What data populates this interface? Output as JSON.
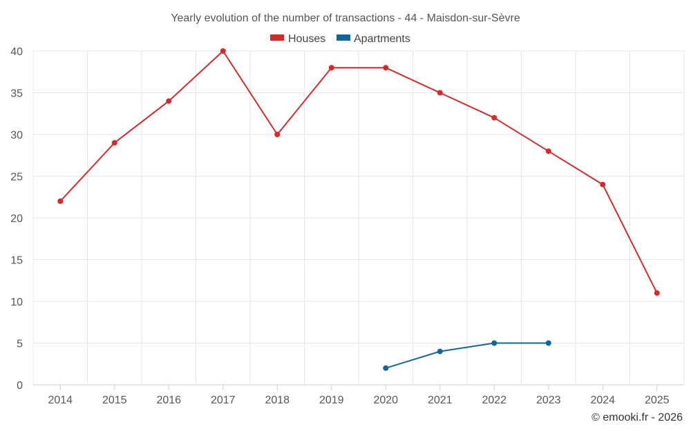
{
  "chart_data": {
    "type": "line",
    "title": "Yearly evolution of the number of transactions - 44 - Maisdon-sur-Sèvre",
    "categories": [
      "2014",
      "2015",
      "2016",
      "2017",
      "2018",
      "2019",
      "2020",
      "2021",
      "2022",
      "2023",
      "2024",
      "2025"
    ],
    "yticks": [
      "0",
      "5",
      "10",
      "15",
      "20",
      "25",
      "30",
      "35",
      "40"
    ],
    "ylim": [
      0,
      40
    ],
    "grid": true,
    "legend_position": "top-center",
    "series": [
      {
        "name": "Houses",
        "color": "#d42a2a",
        "values": [
          22,
          29,
          34,
          40,
          30,
          38,
          38,
          35,
          32,
          28,
          24,
          11
        ]
      },
      {
        "name": "Apartments",
        "color": "#0f6699",
        "values": [
          null,
          null,
          null,
          null,
          null,
          null,
          2,
          4,
          5,
          5,
          null,
          null
        ]
      }
    ],
    "credit": "© emooki.fr - 2026"
  }
}
